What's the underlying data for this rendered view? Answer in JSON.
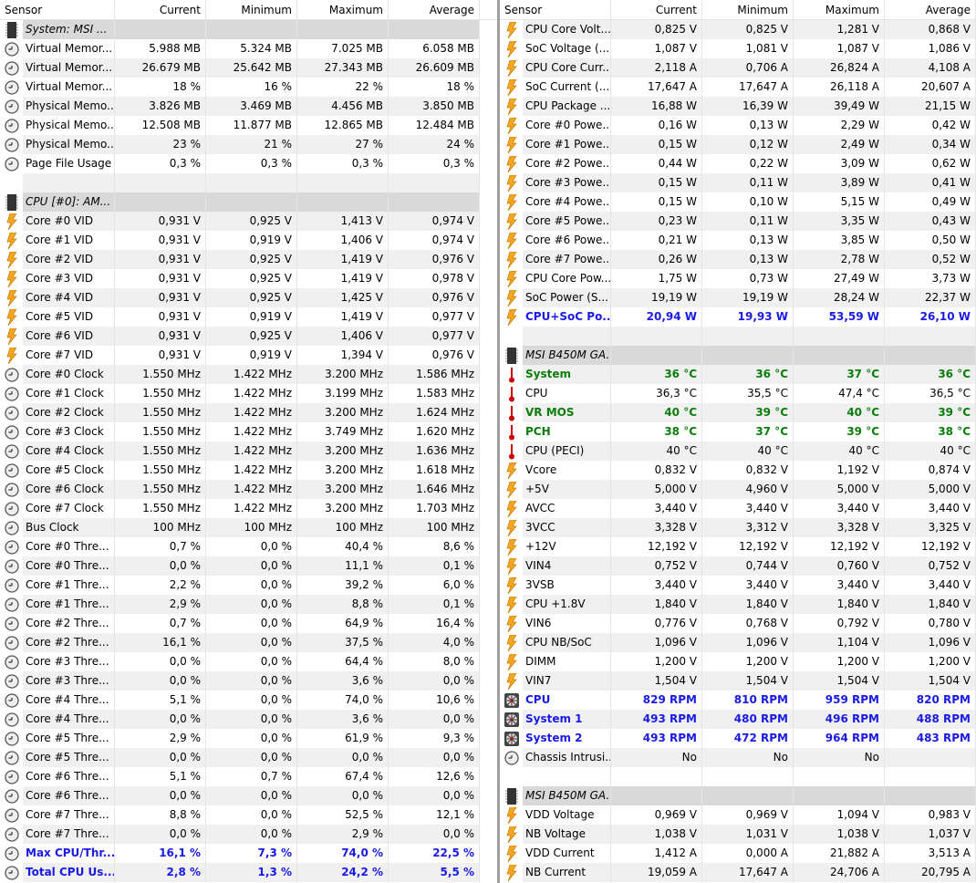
{
  "columns": [
    "Sensor",
    "Current",
    "Minimum",
    "Maximum",
    "Average"
  ],
  "colors": {
    "green": "#0a7d0a",
    "blue": "#1a1ae6"
  },
  "left": [
    [
      "chip",
      "System: MSI ...",
      "",
      "",
      "",
      ""
    ],
    [
      "clock",
      "Virtual Memor...",
      "5.988 MB",
      "5.324 MB",
      "7.025 MB",
      "6.058 MB"
    ],
    [
      "clock",
      "Virtual Memor...",
      "26.679 MB",
      "25.642 MB",
      "27.343 MB",
      "26.609 MB"
    ],
    [
      "clock",
      "Virtual Memor...",
      "18 %",
      "16 %",
      "22 %",
      "18 %"
    ],
    [
      "clock",
      "Physical Memo...",
      "3.826 MB",
      "3.469 MB",
      "4.456 MB",
      "3.850 MB"
    ],
    [
      "clock",
      "Physical Memo...",
      "12.508 MB",
      "11.877 MB",
      "12.865 MB",
      "12.484 MB"
    ],
    [
      "clock",
      "Physical Memo...",
      "23 %",
      "21 %",
      "27 %",
      "24 %"
    ],
    [
      "clock",
      "Page File Usage",
      "0,3 %",
      "0,3 %",
      "0,3 %",
      "0,3 %"
    ],
    [
      "blank",
      "",
      "",
      "",
      "",
      ""
    ],
    [
      "chip",
      "CPU [#0]: AM...",
      "",
      "",
      "",
      ""
    ],
    [
      "bolt",
      "Core #0 VID",
      "0,931 V",
      "0,925 V",
      "1,413 V",
      "0,974 V"
    ],
    [
      "bolt",
      "Core #1 VID",
      "0,931 V",
      "0,919 V",
      "1,406 V",
      "0,974 V"
    ],
    [
      "bolt",
      "Core #2 VID",
      "0,931 V",
      "0,925 V",
      "1,419 V",
      "0,976 V"
    ],
    [
      "bolt",
      "Core #3 VID",
      "0,931 V",
      "0,925 V",
      "1,419 V",
      "0,978 V"
    ],
    [
      "bolt",
      "Core #4 VID",
      "0,931 V",
      "0,925 V",
      "1,425 V",
      "0,976 V"
    ],
    [
      "bolt",
      "Core #5 VID",
      "0,931 V",
      "0,919 V",
      "1,419 V",
      "0,977 V"
    ],
    [
      "bolt",
      "Core #6 VID",
      "0,931 V",
      "0,925 V",
      "1,406 V",
      "0,977 V"
    ],
    [
      "bolt",
      "Core #7 VID",
      "0,931 V",
      "0,919 V",
      "1,394 V",
      "0,976 V"
    ],
    [
      "clock",
      "Core #0 Clock",
      "1.550 MHz",
      "1.422 MHz",
      "3.200 MHz",
      "1.586 MHz"
    ],
    [
      "clock",
      "Core #1 Clock",
      "1.550 MHz",
      "1.422 MHz",
      "3.199 MHz",
      "1.583 MHz"
    ],
    [
      "clock",
      "Core #2 Clock",
      "1.550 MHz",
      "1.422 MHz",
      "3.200 MHz",
      "1.624 MHz"
    ],
    [
      "clock",
      "Core #3 Clock",
      "1.550 MHz",
      "1.422 MHz",
      "3.749 MHz",
      "1.620 MHz"
    ],
    [
      "clock",
      "Core #4 Clock",
      "1.550 MHz",
      "1.422 MHz",
      "3.200 MHz",
      "1.636 MHz"
    ],
    [
      "clock",
      "Core #5 Clock",
      "1.550 MHz",
      "1.422 MHz",
      "3.200 MHz",
      "1.618 MHz"
    ],
    [
      "clock",
      "Core #6 Clock",
      "1.550 MHz",
      "1.422 MHz",
      "3.200 MHz",
      "1.646 MHz"
    ],
    [
      "clock",
      "Core #7 Clock",
      "1.550 MHz",
      "1.422 MHz",
      "3.200 MHz",
      "1.703 MHz"
    ],
    [
      "clock",
      "Bus Clock",
      "100 MHz",
      "100 MHz",
      "100 MHz",
      "100 MHz"
    ],
    [
      "clock",
      "Core #0 Thre...",
      "0,7 %",
      "0,0 %",
      "40,4 %",
      "8,6 %"
    ],
    [
      "clock",
      "Core #0 Thre...",
      "0,0 %",
      "0,0 %",
      "11,1 %",
      "0,1 %"
    ],
    [
      "clock",
      "Core #1 Thre...",
      "2,2 %",
      "0,0 %",
      "39,2 %",
      "6,0 %"
    ],
    [
      "clock",
      "Core #1 Thre...",
      "2,9 %",
      "0,0 %",
      "8,8 %",
      "0,1 %"
    ],
    [
      "clock",
      "Core #2 Thre...",
      "0,7 %",
      "0,0 %",
      "64,9 %",
      "16,4 %"
    ],
    [
      "clock",
      "Core #2 Thre...",
      "16,1 %",
      "0,0 %",
      "37,5 %",
      "4,0 %"
    ],
    [
      "clock",
      "Core #3 Thre...",
      "0,0 %",
      "0,0 %",
      "64,4 %",
      "8,0 %"
    ],
    [
      "clock",
      "Core #3 Thre...",
      "0,0 %",
      "0,0 %",
      "3,6 %",
      "0,0 %"
    ],
    [
      "clock",
      "Core #4 Thre...",
      "5,1 %",
      "0,0 %",
      "74,0 %",
      "10,6 %"
    ],
    [
      "clock",
      "Core #4 Thre...",
      "0,0 %",
      "0,0 %",
      "3,6 %",
      "0,0 %"
    ],
    [
      "clock",
      "Core #5 Thre...",
      "2,9 %",
      "0,0 %",
      "61,9 %",
      "9,3 %"
    ],
    [
      "clock",
      "Core #5 Thre...",
      "0,0 %",
      "0,0 %",
      "0,0 %",
      "0,0 %"
    ],
    [
      "clock",
      "Core #6 Thre...",
      "5,1 %",
      "0,7 %",
      "67,4 %",
      "12,6 %"
    ],
    [
      "clock",
      "Core #6 Thre...",
      "0,0 %",
      "0,0 %",
      "0,0 %",
      "0,0 %"
    ],
    [
      "clock",
      "Core #7 Thre...",
      "8,8 %",
      "0,0 %",
      "52,5 %",
      "12,1 %"
    ],
    [
      "clock",
      "Core #7 Thre...",
      "0,0 %",
      "0,0 %",
      "2,9 %",
      "0,0 %"
    ],
    [
      "clock",
      "Max CPU/Thr...",
      "16,1 %",
      "7,3 %",
      "74,0 %",
      "22,5 %",
      "blue"
    ],
    [
      "clock",
      "Total CPU Us...",
      "2,8 %",
      "1,3 %",
      "24,2 %",
      "5,5 %",
      "blue"
    ]
  ],
  "right": [
    [
      "bolt",
      "CPU Core Volt...",
      "0,825 V",
      "0,825 V",
      "1,281 V",
      "0,868 V"
    ],
    [
      "bolt",
      "SoC Voltage (...",
      "1,087 V",
      "1,081 V",
      "1,087 V",
      "1,086 V"
    ],
    [
      "bolt",
      "CPU Core Curr...",
      "2,118 A",
      "0,706 A",
      "26,824 A",
      "4,108 A"
    ],
    [
      "bolt",
      "SoC Current (...",
      "17,647 A",
      "17,647 A",
      "26,118 A",
      "20,607 A"
    ],
    [
      "bolt",
      "CPU Package ...",
      "16,88 W",
      "16,39 W",
      "39,49 W",
      "21,15 W"
    ],
    [
      "bolt",
      "Core #0 Powe...",
      "0,16 W",
      "0,13 W",
      "2,29 W",
      "0,42 W"
    ],
    [
      "bolt",
      "Core #1 Powe...",
      "0,15 W",
      "0,12 W",
      "2,49 W",
      "0,34 W"
    ],
    [
      "bolt",
      "Core #2 Powe...",
      "0,44 W",
      "0,22 W",
      "3,09 W",
      "0,62 W"
    ],
    [
      "bolt",
      "Core #3 Powe...",
      "0,15 W",
      "0,11 W",
      "3,89 W",
      "0,41 W"
    ],
    [
      "bolt",
      "Core #4 Powe...",
      "0,15 W",
      "0,10 W",
      "5,15 W",
      "0,49 W"
    ],
    [
      "bolt",
      "Core #5 Powe...",
      "0,23 W",
      "0,11 W",
      "3,35 W",
      "0,43 W"
    ],
    [
      "bolt",
      "Core #6 Powe...",
      "0,21 W",
      "0,13 W",
      "3,85 W",
      "0,50 W"
    ],
    [
      "bolt",
      "Core #7 Powe...",
      "0,26 W",
      "0,13 W",
      "2,78 W",
      "0,52 W"
    ],
    [
      "bolt",
      "CPU Core Pow...",
      "1,75 W",
      "0,73 W",
      "27,49 W",
      "3,73 W"
    ],
    [
      "bolt",
      "SoC Power (S...",
      "19,19 W",
      "19,19 W",
      "28,24 W",
      "22,37 W"
    ],
    [
      "bolt",
      "CPU+SoC Po...",
      "20,94 W",
      "19,93 W",
      "53,59 W",
      "26,10 W",
      "blue"
    ],
    [
      "blank",
      "",
      "",
      "",
      "",
      ""
    ],
    [
      "chip",
      "MSI B450M GA...",
      "",
      "",
      "",
      ""
    ],
    [
      "therm",
      "System",
      "36 °C",
      "36 °C",
      "37 °C",
      "36 °C",
      "green"
    ],
    [
      "therm",
      "CPU",
      "36,3 °C",
      "35,5 °C",
      "47,4 °C",
      "36,5 °C"
    ],
    [
      "therm",
      "VR MOS",
      "40 °C",
      "39 °C",
      "40 °C",
      "39 °C",
      "green"
    ],
    [
      "therm",
      "PCH",
      "38 °C",
      "37 °C",
      "39 °C",
      "38 °C",
      "green"
    ],
    [
      "therm",
      "CPU (PECI)",
      "40 °C",
      "40 °C",
      "40 °C",
      "40 °C"
    ],
    [
      "bolt",
      "Vcore",
      "0,832 V",
      "0,832 V",
      "1,192 V",
      "0,874 V"
    ],
    [
      "bolt",
      "+5V",
      "5,000 V",
      "4,960 V",
      "5,000 V",
      "5,000 V"
    ],
    [
      "bolt",
      "AVCC",
      "3,440 V",
      "3,440 V",
      "3,440 V",
      "3,440 V"
    ],
    [
      "bolt",
      "3VCC",
      "3,328 V",
      "3,312 V",
      "3,328 V",
      "3,325 V"
    ],
    [
      "bolt",
      "+12V",
      "12,192 V",
      "12,192 V",
      "12,192 V",
      "12,192 V"
    ],
    [
      "bolt",
      "VIN4",
      "0,752 V",
      "0,744 V",
      "0,760 V",
      "0,752 V"
    ],
    [
      "bolt",
      "3VSB",
      "3,440 V",
      "3,440 V",
      "3,440 V",
      "3,440 V"
    ],
    [
      "bolt",
      "CPU +1.8V",
      "1,840 V",
      "1,840 V",
      "1,840 V",
      "1,840 V"
    ],
    [
      "bolt",
      "VIN6",
      "0,776 V",
      "0,768 V",
      "0,792 V",
      "0,780 V"
    ],
    [
      "bolt",
      "CPU NB/SoC",
      "1,096 V",
      "1,096 V",
      "1,104 V",
      "1,096 V"
    ],
    [
      "bolt",
      "DIMM",
      "1,200 V",
      "1,200 V",
      "1,200 V",
      "1,200 V"
    ],
    [
      "bolt",
      "VIN7",
      "1,504 V",
      "1,504 V",
      "1,504 V",
      "1,504 V"
    ],
    [
      "fan",
      "CPU",
      "829 RPM",
      "810 RPM",
      "959 RPM",
      "820 RPM",
      "blue"
    ],
    [
      "fan",
      "System 1",
      "493 RPM",
      "480 RPM",
      "496 RPM",
      "488 RPM",
      "blue"
    ],
    [
      "fan",
      "System 2",
      "493 RPM",
      "472 RPM",
      "964 RPM",
      "483 RPM",
      "blue"
    ],
    [
      "clock",
      "Chassis Intrusi...",
      "No",
      "No",
      "No",
      ""
    ],
    [
      "blank",
      "",
      "",
      "",
      "",
      ""
    ],
    [
      "chip",
      "MSI B450M GA...",
      "",
      "",
      "",
      ""
    ],
    [
      "bolt",
      "VDD Voltage",
      "0,969 V",
      "0,969 V",
      "1,094 V",
      "0,983 V"
    ],
    [
      "bolt",
      "NB Voltage",
      "1,038 V",
      "1,031 V",
      "1,038 V",
      "1,037 V"
    ],
    [
      "bolt",
      "VDD Current",
      "1,412 A",
      "0,000 A",
      "21,882 A",
      "3,513 A"
    ],
    [
      "bolt",
      "NB Current",
      "19,059 A",
      "17,647 A",
      "24,706 A",
      "20,795 A"
    ]
  ]
}
